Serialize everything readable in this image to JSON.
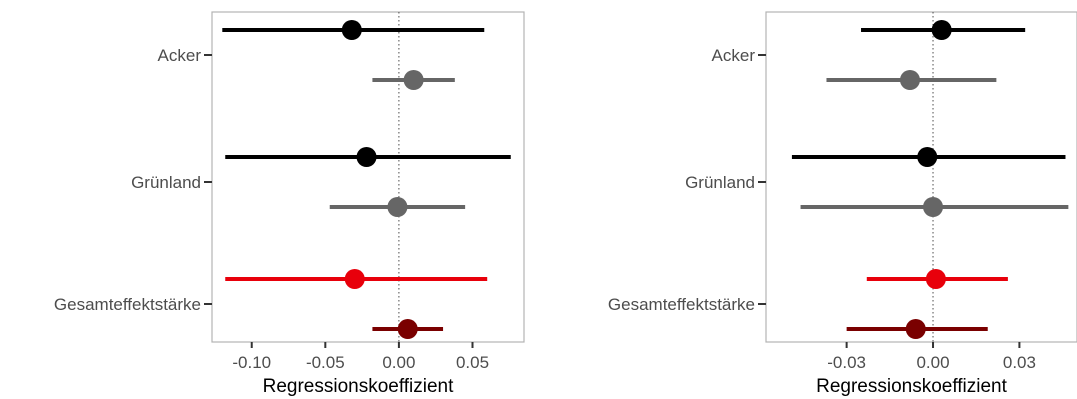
{
  "chart_data": [
    {
      "type": "forest",
      "title": "",
      "xlabel": "Regressionskoeffizient",
      "ylabel": "",
      "categories": [
        "Acker",
        "Grünland",
        "Gesamteffektstärke"
      ],
      "x_ticks": [
        -0.1,
        -0.05,
        0.0,
        0.05
      ],
      "x_tick_labels": [
        "-0.10",
        "-0.05",
        "0.00",
        "0.05"
      ],
      "xlim": [
        -0.127,
        0.085
      ],
      "reference_line": 0,
      "grid": false,
      "legend": "none",
      "colors": {
        "black": "#000000",
        "grey": "#666666",
        "red": "#e8000b",
        "darkred": "#7a0000"
      },
      "points": [
        {
          "category": "Acker",
          "row": 0,
          "color": "black",
          "estimate": -0.032,
          "lower": -0.12,
          "upper": 0.058
        },
        {
          "category": "Acker",
          "row": 1,
          "color": "grey",
          "estimate": 0.01,
          "lower": -0.018,
          "upper": 0.038
        },
        {
          "category": "Grünland",
          "row": 0,
          "color": "black",
          "estimate": -0.022,
          "lower": -0.118,
          "upper": 0.076
        },
        {
          "category": "Grünland",
          "row": 1,
          "color": "grey",
          "estimate": -0.001,
          "lower": -0.047,
          "upper": 0.045
        },
        {
          "category": "Gesamteffektstärke",
          "row": 0,
          "color": "red",
          "estimate": -0.03,
          "lower": -0.118,
          "upper": 0.06
        },
        {
          "category": "Gesamteffektstärke",
          "row": 1,
          "color": "darkred",
          "estimate": 0.006,
          "lower": -0.018,
          "upper": 0.03
        }
      ]
    },
    {
      "type": "forest",
      "title": "",
      "xlabel": "Regressionskoeffizient",
      "ylabel": "",
      "categories": [
        "Acker",
        "Grünland",
        "Gesamteffektstärke"
      ],
      "x_ticks": [
        -0.03,
        0.0,
        0.03
      ],
      "x_tick_labels": [
        "-0.03",
        "0.00",
        "0.03"
      ],
      "xlim": [
        -0.058,
        0.05
      ],
      "reference_line": 0,
      "grid": false,
      "legend": "none",
      "colors": {
        "black": "#000000",
        "grey": "#666666",
        "red": "#e8000b",
        "darkred": "#7a0000"
      },
      "points": [
        {
          "category": "Acker",
          "row": 0,
          "color": "black",
          "estimate": 0.003,
          "lower": -0.025,
          "upper": 0.032
        },
        {
          "category": "Acker",
          "row": 1,
          "color": "grey",
          "estimate": -0.008,
          "lower": -0.037,
          "upper": 0.022
        },
        {
          "category": "Grünland",
          "row": 0,
          "color": "black",
          "estimate": -0.002,
          "lower": -0.049,
          "upper": 0.046
        },
        {
          "category": "Grünland",
          "row": 1,
          "color": "grey",
          "estimate": 0.0,
          "lower": -0.046,
          "upper": 0.047
        },
        {
          "category": "Gesamteffektstärke",
          "row": 0,
          "color": "red",
          "estimate": 0.001,
          "lower": -0.023,
          "upper": 0.026
        },
        {
          "category": "Gesamteffektstärke",
          "row": 1,
          "color": "darkred",
          "estimate": -0.006,
          "lower": -0.03,
          "upper": 0.019
        }
      ]
    }
  ]
}
